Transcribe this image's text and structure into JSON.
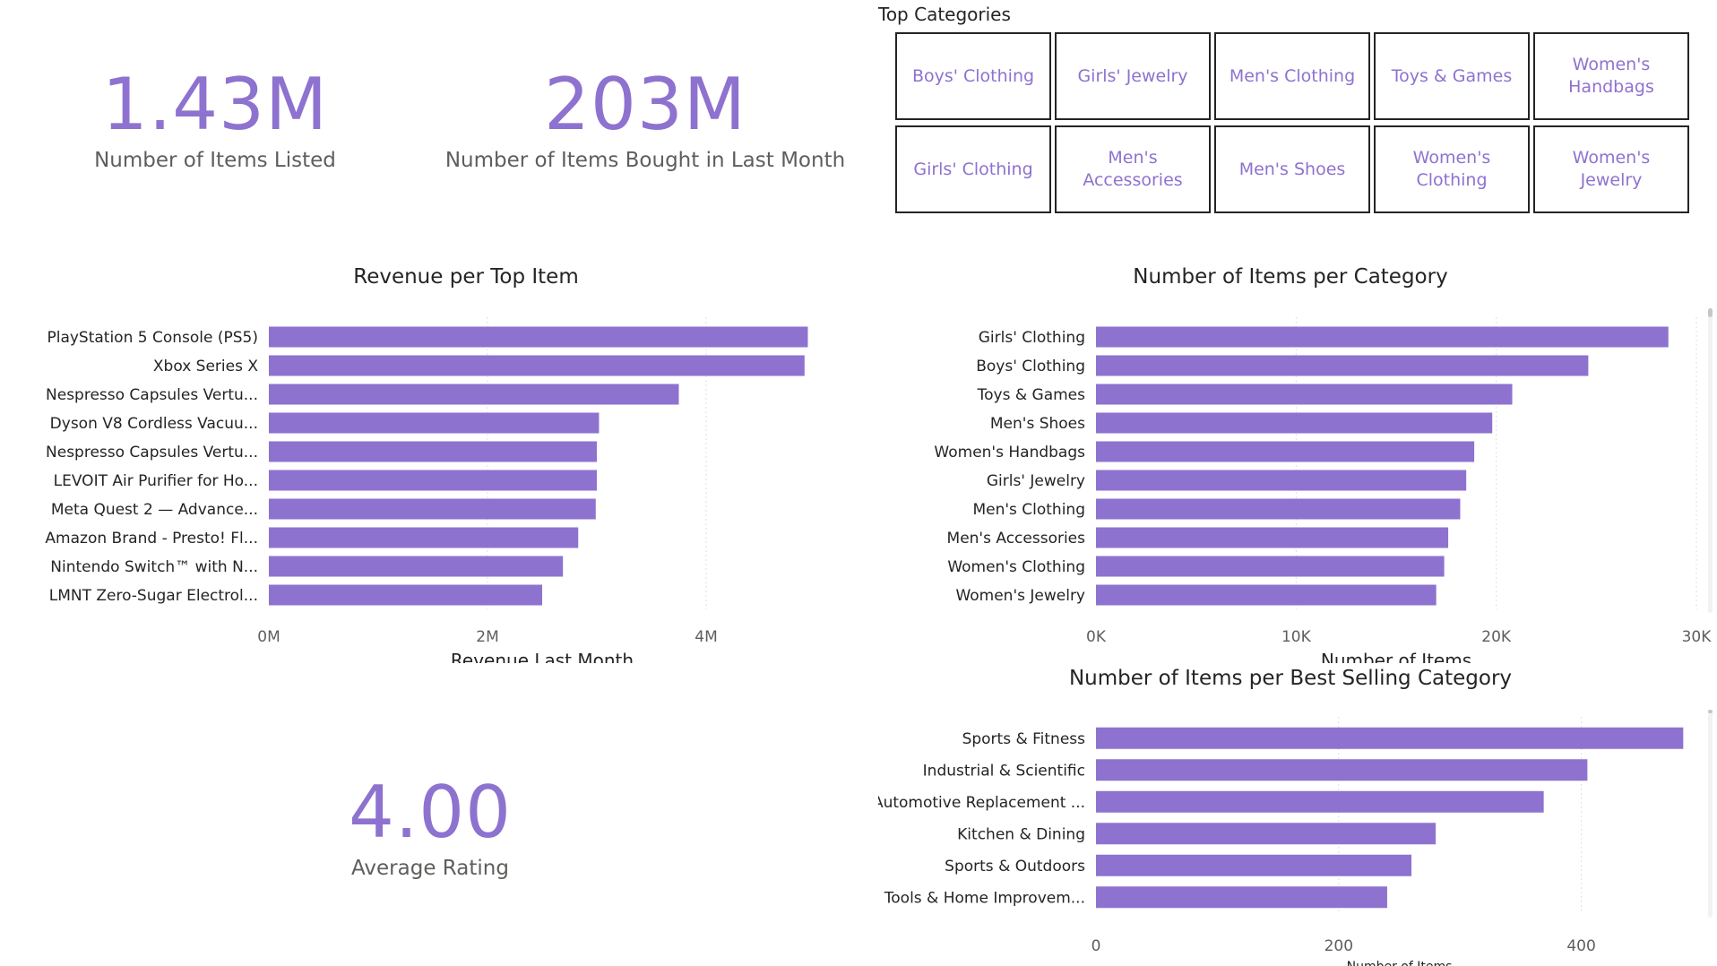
{
  "kpis": {
    "items_listed": {
      "value": "1.43M",
      "label": "Number of Items Listed"
    },
    "items_bought": {
      "value": "203M",
      "label": "Number of Items Bought in Last Month"
    },
    "avg_rating": {
      "value": "4.00",
      "label": "Average Rating"
    }
  },
  "slicer": {
    "title": "Top Categories",
    "tiles": [
      "Boys' Clothing",
      "Girls' Jewelry",
      "Men's Clothing",
      "Toys & Games",
      "Women's Handbags",
      "Girls' Clothing",
      "Men's Accessories",
      "Men's Shoes",
      "Women's Clothing",
      "Women's Jewelry"
    ]
  },
  "colors": {
    "accent": "#8e72cf",
    "text": "#252423",
    "axis_text": "#605e5c",
    "grid": "#e1dfdd"
  },
  "chart_data": [
    {
      "id": "revenue",
      "type": "bar",
      "orientation": "horizontal",
      "title": "Revenue per Top Item",
      "xlabel": "Revenue Last Month",
      "ylabel": "",
      "xlim": [
        0,
        5000000
      ],
      "ticks": [
        0,
        2000000,
        4000000
      ],
      "tick_labels": [
        "0M",
        "2M",
        "4M"
      ],
      "grid": true,
      "categories": [
        "PlayStation 5 Console (PS5)",
        "Xbox Series X",
        "Nespresso Capsules Vertu...",
        "Dyson V8 Cordless Vacuu...",
        "Nespresso Capsules Vertu...",
        "LEVOIT Air Purifier for Ho...",
        "Meta Quest 2 — Advance...",
        "Amazon Brand - Presto! Fl...",
        "Nintendo Switch™ with N...",
        "LMNT Zero-Sugar Electrol..."
      ],
      "values": [
        4930000,
        4900000,
        3750000,
        3020000,
        3000000,
        3000000,
        2990000,
        2830000,
        2690000,
        2500000
      ]
    },
    {
      "id": "per_category",
      "type": "bar",
      "orientation": "horizontal",
      "title": "Number of Items per Category",
      "xlabel": "Number of Items",
      "ylabel": "",
      "xlim": [
        0,
        30000
      ],
      "ticks": [
        0,
        10000,
        20000,
        30000
      ],
      "tick_labels": [
        "0K",
        "10K",
        "20K",
        "30K"
      ],
      "grid": true,
      "categories": [
        "Girls' Clothing",
        "Boys' Clothing",
        "Toys & Games",
        "Men's Shoes",
        "Women's Handbags",
        "Girls' Jewelry",
        "Men's Clothing",
        "Men's Accessories",
        "Women's Clothing",
        "Women's Jewelry"
      ],
      "values": [
        28600,
        24600,
        20800,
        19800,
        18900,
        18500,
        18200,
        17600,
        17400,
        17000
      ]
    },
    {
      "id": "best_selling",
      "type": "bar",
      "orientation": "horizontal",
      "title": "Number of Items per Best Selling Category",
      "xlabel": "Number of Items",
      "ylabel": "",
      "xlim": [
        0,
        500
      ],
      "ticks": [
        0,
        200,
        400
      ],
      "tick_labels": [
        "0",
        "200",
        "400"
      ],
      "grid": true,
      "categories": [
        "Sports & Fitness",
        "Industrial & Scientific",
        "Automotive Replacement ...",
        "Kitchen & Dining",
        "Sports & Outdoors",
        "Tools & Home Improvem..."
      ],
      "values": [
        484,
        405,
        369,
        280,
        260,
        240
      ]
    }
  ]
}
